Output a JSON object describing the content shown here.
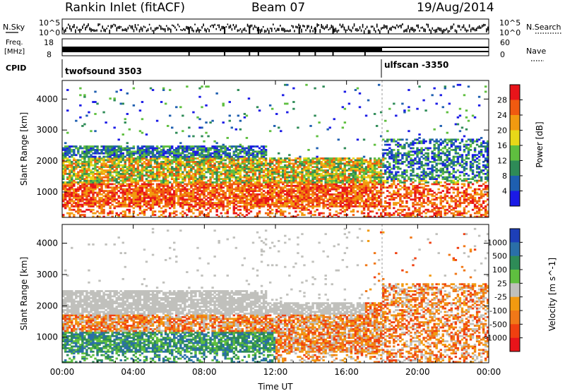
{
  "header": {
    "station": "Rankin Inlet (fitACF)",
    "beam": "Beam 07",
    "date": "19/Aug/2014"
  },
  "strips": {
    "nsky": {
      "label": "N.Sky",
      "yticks": [
        "10^5",
        "10^0"
      ]
    },
    "nsearch": {
      "label": "N.Search",
      "yticks": [
        "10^5",
        "10^0"
      ]
    },
    "freq": {
      "label_line1": "Freq.",
      "label_line2": "[MHz]",
      "yticks": [
        "18",
        "8"
      ]
    },
    "nave": {
      "label": "Nave",
      "yticks": [
        "60",
        "0"
      ]
    },
    "cpid": {
      "label": "CPID",
      "programs": [
        {
          "name": "twofsound 3503",
          "start_hour": 0
        },
        {
          "name": "ulfscan -3350",
          "start_hour": 18.0
        }
      ]
    }
  },
  "chart_data": [
    {
      "type": "heatmap",
      "title": "",
      "xlabel": "Time UT",
      "ylabel": "Slant Range [km]",
      "x_ticks": [
        "00:00",
        "04:00",
        "08:00",
        "12:00",
        "16:00",
        "20:00",
        "00:00"
      ],
      "xlim_hours": [
        0,
        24
      ],
      "y_ticks": [
        1000,
        2000,
        3000,
        4000
      ],
      "ylim": [
        180,
        4600
      ],
      "colorbar": {
        "label": "Power [dB]",
        "ticks": [
          4,
          8,
          12,
          16,
          20,
          24,
          28
        ],
        "colors": [
          "#1a1ae6",
          "#1e5fb0",
          "#2e8b57",
          "#5fbf3f",
          "#e8d818",
          "#f29a10",
          "#f05a10",
          "#e8141a"
        ]
      }
    },
    {
      "type": "heatmap",
      "title": "",
      "xlabel": "Time UT",
      "ylabel": "Slant Range [km]",
      "x_ticks": [
        "00:00",
        "04:00",
        "08:00",
        "12:00",
        "16:00",
        "20:00",
        "00:00"
      ],
      "xlim_hours": [
        0,
        24
      ],
      "y_ticks": [
        1000,
        2000,
        3000,
        4000
      ],
      "ylim": [
        180,
        4600
      ],
      "colorbar": {
        "label": "Velocity [m s^-1]",
        "ticks": [
          1000,
          500,
          100,
          25,
          -25,
          -100,
          -500,
          -1000
        ],
        "colors": [
          "#1d3fb8",
          "#2a6fa8",
          "#2e8b57",
          "#5fbf3f",
          "#c0c0bc",
          "#f29a10",
          "#f07818",
          "#f04010",
          "#e8141a"
        ]
      }
    }
  ]
}
